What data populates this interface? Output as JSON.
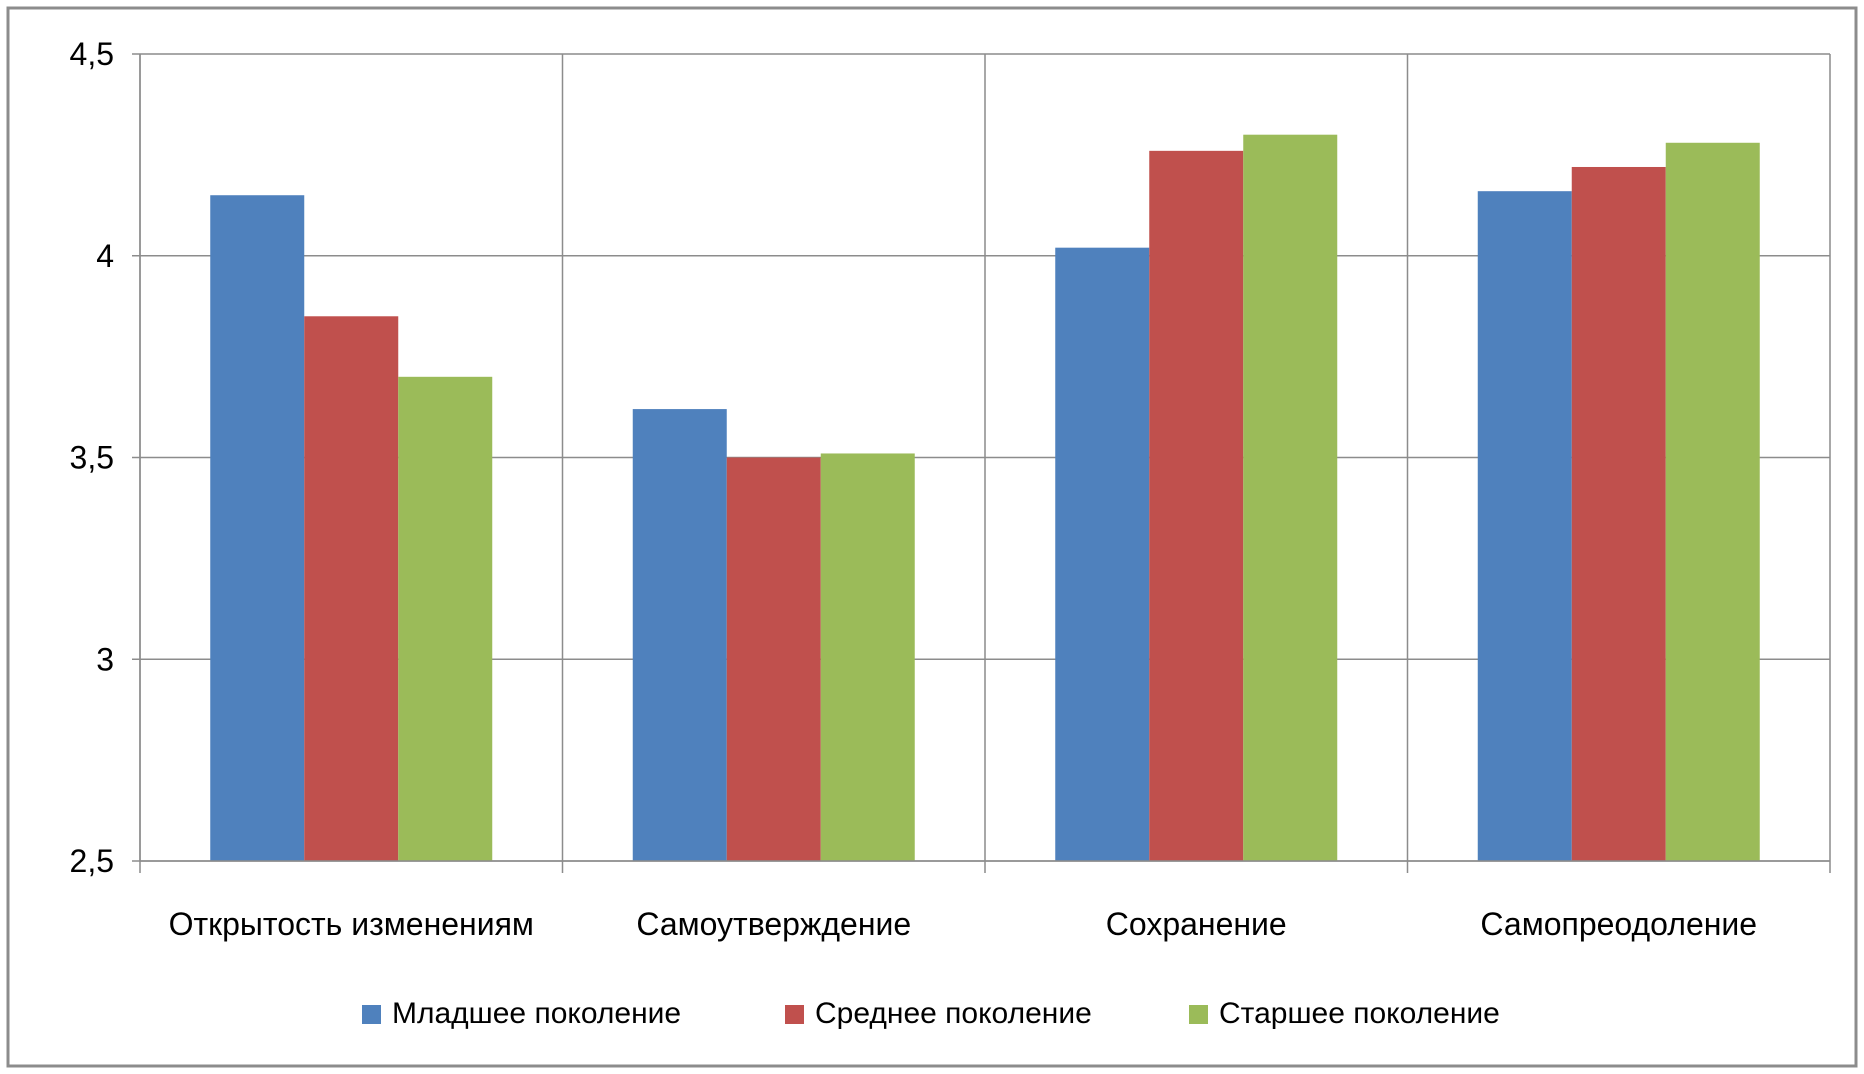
{
  "chart_data": {
    "type": "bar",
    "title": "",
    "xlabel": "",
    "ylabel": "",
    "categories": [
      "Открытость изменениям",
      "Самоутверждение",
      "Сохранение",
      "Самопреодоление"
    ],
    "series": [
      {
        "name": "Младшее поколение",
        "color": "#4F81BD",
        "values": [
          4.15,
          3.62,
          4.02,
          4.16
        ]
      },
      {
        "name": "Среднее поколение",
        "color": "#C0504D",
        "values": [
          3.85,
          3.5,
          4.26,
          4.22
        ]
      },
      {
        "name": "Старшее поколение",
        "color": "#9BBB59",
        "values": [
          3.7,
          3.51,
          4.3,
          4.28
        ]
      }
    ],
    "ylim": [
      2.5,
      4.5
    ],
    "yticks": [
      {
        "value": 2.5,
        "label": "2,5"
      },
      {
        "value": 3.0,
        "label": "3"
      },
      {
        "value": 3.5,
        "label": "3,5"
      },
      {
        "value": 4.0,
        "label": "4"
      },
      {
        "value": 4.5,
        "label": "4,5"
      }
    ],
    "grid": true,
    "legend": "bottom"
  }
}
